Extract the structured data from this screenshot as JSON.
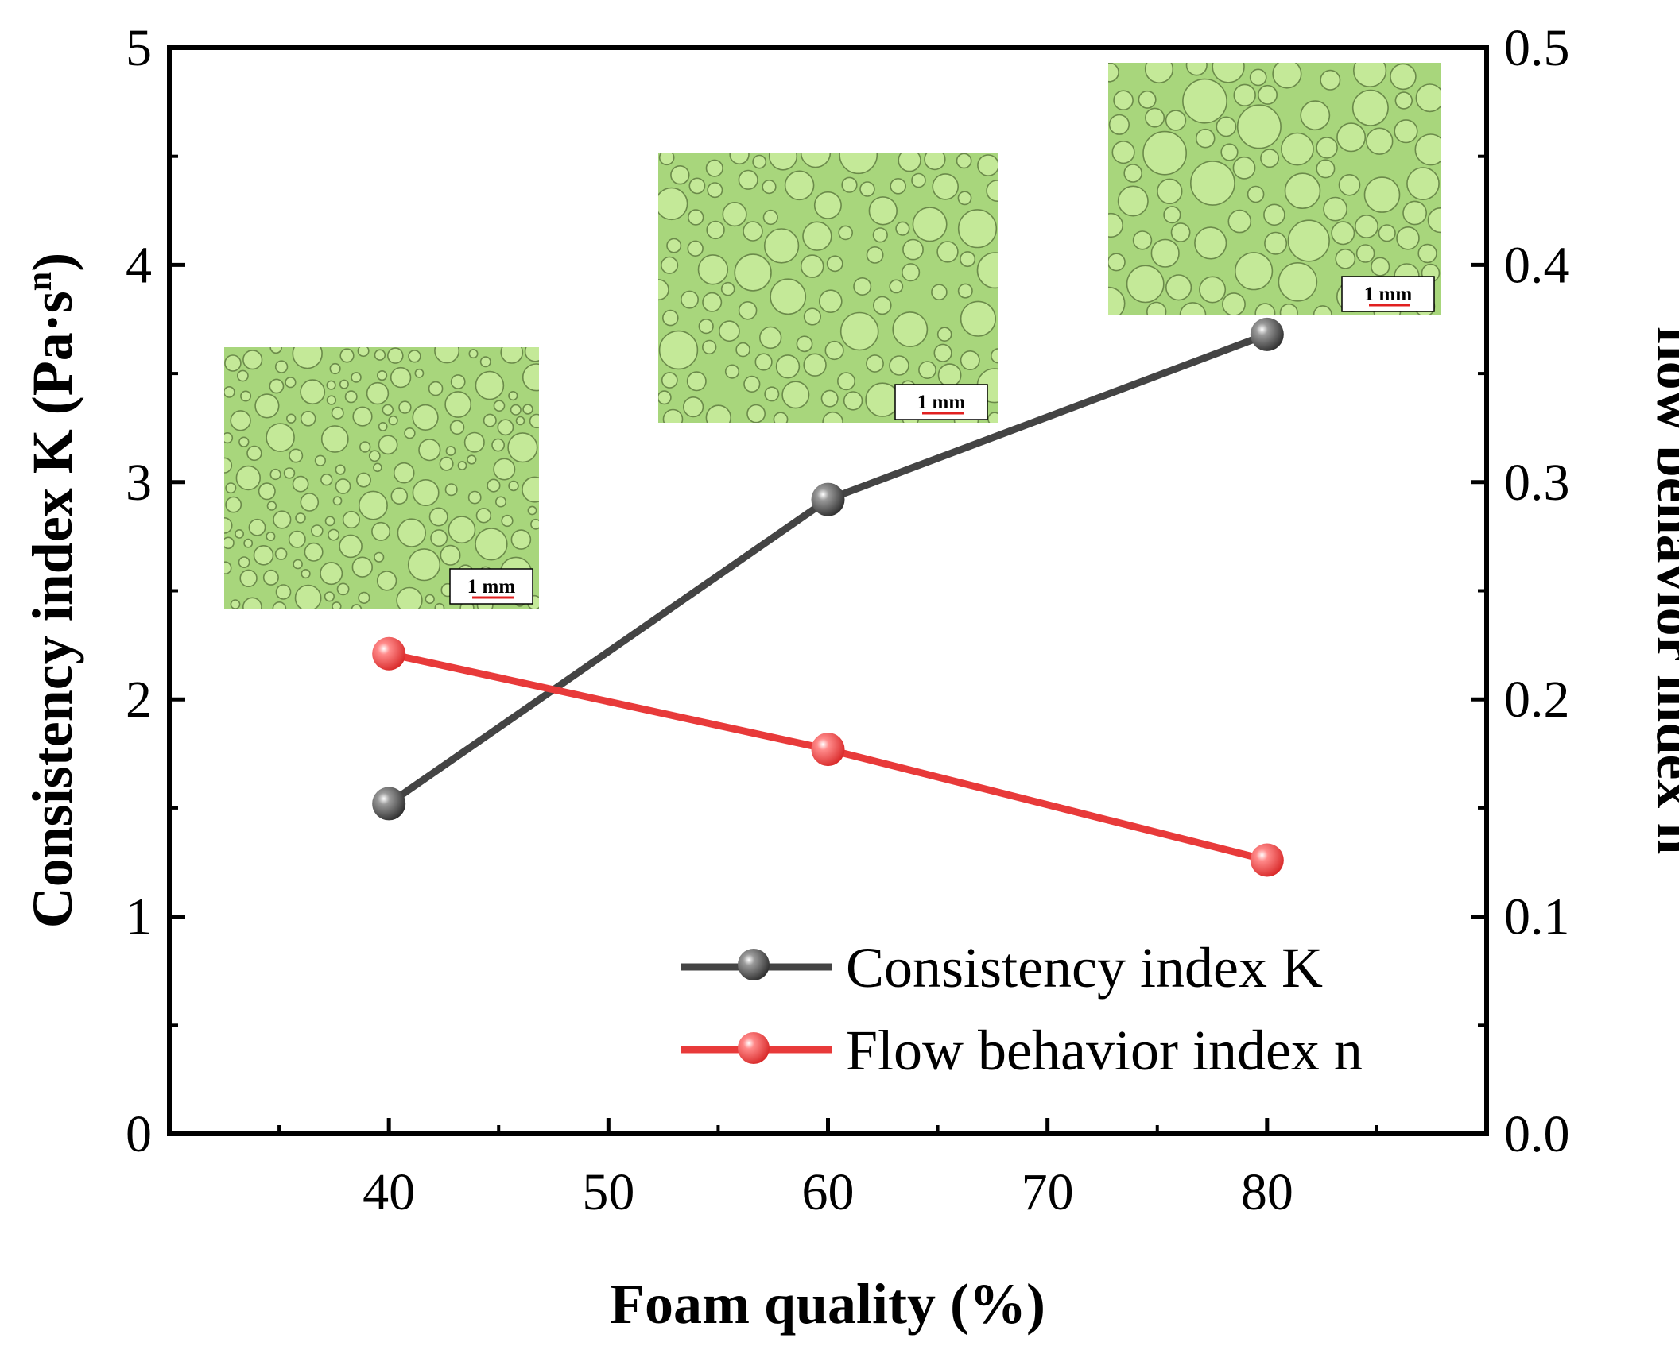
{
  "chart_data": {
    "type": "line",
    "xlabel": "Foam quality  (%)",
    "ylabel_left": "Consistency index K (Pa·s",
    "ylabel_left_sup": "n",
    "ylabel_left_close": ")",
    "ylabel_right": "flow behavior index n",
    "x_ticks": [
      "40",
      "50",
      "60",
      "70",
      "80"
    ],
    "x_tick_values": [
      40,
      50,
      60,
      70,
      80
    ],
    "xlim": [
      30,
      90
    ],
    "y_left_ticks": [
      "0",
      "1",
      "2",
      "3",
      "4",
      "5"
    ],
    "y_left_tick_values": [
      0,
      1,
      2,
      3,
      4,
      5
    ],
    "ylim_left": [
      0,
      5
    ],
    "y_right_ticks": [
      "0.0",
      "0.1",
      "0.2",
      "0.3",
      "0.4",
      "0.5"
    ],
    "y_right_tick_values": [
      0,
      0.1,
      0.2,
      0.3,
      0.4,
      0.5
    ],
    "ylim_right": [
      0,
      0.5
    ],
    "legend_position": "bottom-right",
    "series": [
      {
        "name": "Consistency index K",
        "axis": "left",
        "color": "#444444",
        "x": [
          40,
          60,
          80
        ],
        "y": [
          1.52,
          2.92,
          3.68
        ]
      },
      {
        "name": "Flow behavior index n",
        "axis": "right",
        "color": "#e83a3a",
        "x": [
          40,
          60,
          80
        ],
        "y": [
          0.221,
          0.177,
          0.126
        ]
      }
    ],
    "insets": [
      {
        "name": "micrograph-40",
        "scale_label": "1 mm"
      },
      {
        "name": "micrograph-60",
        "scale_label": "1 mm"
      },
      {
        "name": "micrograph-80",
        "scale_label": "1 mm"
      }
    ]
  },
  "colors": {
    "inset_bg": "#a8d67c",
    "inset_bubble": "#c4e998",
    "inset_edge": "#6b8a4a"
  }
}
